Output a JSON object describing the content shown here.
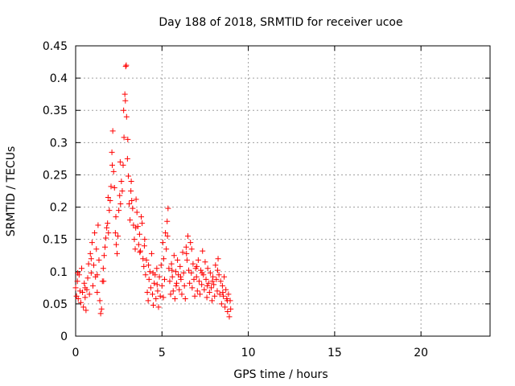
{
  "chart_data": {
    "type": "scatter",
    "title": "Day 188 of 2018, SRMTID for receiver ucoe",
    "xlabel": "GPS time / hours",
    "ylabel": "SRMTID / TECUs",
    "xlim": [
      0,
      24
    ],
    "ylim": [
      0,
      0.45
    ],
    "grid": true,
    "marker": "+",
    "color": "#ff0000",
    "x_ticks": [
      "0",
      "5",
      "10",
      "15",
      "20"
    ],
    "y_ticks": [
      "0",
      "0.05",
      "0.1",
      "0.15",
      "0.2",
      "0.25",
      "0.3",
      "0.35",
      "0.4",
      "0.45"
    ],
    "series": [
      {
        "name": "SRMTID",
        "points": [
          [
            0.0,
            0.075
          ],
          [
            0.05,
            0.062
          ],
          [
            0.1,
            0.085
          ],
          [
            0.15,
            0.058
          ],
          [
            0.2,
            0.095
          ],
          [
            0.25,
            0.07
          ],
          [
            0.3,
            0.052
          ],
          [
            0.35,
            0.105
          ],
          [
            0.4,
            0.068
          ],
          [
            0.45,
            0.045
          ],
          [
            0.5,
            0.082
          ],
          [
            0.55,
            0.06
          ],
          [
            0.6,
            0.04
          ],
          [
            0.65,
            0.072
          ],
          [
            0.7,
            0.09
          ],
          [
            0.75,
            0.112
          ],
          [
            0.8,
            0.065
          ],
          [
            0.85,
            0.128
          ],
          [
            0.9,
            0.098
          ],
          [
            0.95,
            0.145
          ],
          [
            1.0,
            0.078
          ],
          [
            1.05,
            0.11
          ],
          [
            1.1,
            0.16
          ],
          [
            1.15,
            0.092
          ],
          [
            1.2,
            0.135
          ],
          [
            1.25,
            0.068
          ],
          [
            1.3,
            0.172
          ],
          [
            1.35,
            0.118
          ],
          [
            1.4,
            0.055
          ],
          [
            1.45,
            0.035
          ],
          [
            1.5,
            0.042
          ],
          [
            1.55,
            0.085
          ],
          [
            1.6,
            0.105
          ],
          [
            1.65,
            0.125
          ],
          [
            1.7,
            0.138
          ],
          [
            1.75,
            0.152
          ],
          [
            1.8,
            0.168
          ],
          [
            1.85,
            0.175
          ],
          [
            1.9,
            0.16
          ],
          [
            1.95,
            0.195
          ],
          [
            2.0,
            0.21
          ],
          [
            2.05,
            0.232
          ],
          [
            2.1,
            0.285
          ],
          [
            2.15,
            0.318
          ],
          [
            2.2,
            0.255
          ],
          [
            2.25,
            0.23
          ],
          [
            2.3,
            0.16
          ],
          [
            2.35,
            0.142
          ],
          [
            2.4,
            0.128
          ],
          [
            2.45,
            0.155
          ],
          [
            2.5,
            0.195
          ],
          [
            2.55,
            0.218
          ],
          [
            2.6,
            0.205
          ],
          [
            2.65,
            0.24
          ],
          [
            2.7,
            0.225
          ],
          [
            2.75,
            0.265
          ],
          [
            2.8,
            0.308
          ],
          [
            2.85,
            0.375
          ],
          [
            2.9,
            0.418
          ],
          [
            2.95,
            0.34
          ],
          [
            3.0,
            0.275
          ],
          [
            3.05,
            0.248
          ],
          [
            3.1,
            0.205
          ],
          [
            3.15,
            0.18
          ],
          [
            3.2,
            0.225
          ],
          [
            3.25,
            0.21
          ],
          [
            3.3,
            0.198
          ],
          [
            3.35,
            0.172
          ],
          [
            3.4,
            0.15
          ],
          [
            3.45,
            0.135
          ],
          [
            3.5,
            0.212
          ],
          [
            3.55,
            0.192
          ],
          [
            3.6,
            0.17
          ],
          [
            3.65,
            0.142
          ],
          [
            3.7,
            0.158
          ],
          [
            3.75,
            0.132
          ],
          [
            3.8,
            0.185
          ],
          [
            3.85,
            0.175
          ],
          [
            3.9,
            0.12
          ],
          [
            3.95,
            0.108
          ],
          [
            4.0,
            0.15
          ],
          [
            4.05,
            0.095
          ],
          [
            4.1,
            0.118
          ],
          [
            4.15,
            0.068
          ],
          [
            4.2,
            0.055
          ],
          [
            4.25,
            0.088
          ],
          [
            4.3,
            0.1
          ],
          [
            4.35,
            0.075
          ],
          [
            4.4,
            0.128
          ],
          [
            4.45,
            0.065
          ],
          [
            4.5,
            0.048
          ],
          [
            4.55,
            0.082
          ],
          [
            4.6,
            0.095
          ],
          [
            4.65,
            0.058
          ],
          [
            4.7,
            0.105
          ],
          [
            4.75,
            0.07
          ],
          [
            4.8,
            0.045
          ],
          [
            4.85,
            0.092
          ],
          [
            4.9,
            0.062
          ],
          [
            4.95,
            0.11
          ],
          [
            5.0,
            0.078
          ],
          [
            5.05,
            0.145
          ],
          [
            5.1,
            0.12
          ],
          [
            5.15,
            0.088
          ],
          [
            5.2,
            0.16
          ],
          [
            5.25,
            0.135
          ],
          [
            5.3,
            0.178
          ],
          [
            5.35,
            0.198
          ],
          [
            5.4,
            0.105
          ],
          [
            5.45,
            0.085
          ],
          [
            5.5,
            0.065
          ],
          [
            5.55,
            0.112
          ],
          [
            5.6,
            0.092
          ],
          [
            5.65,
            0.07
          ],
          [
            5.7,
            0.125
          ],
          [
            5.75,
            0.058
          ],
          [
            5.8,
            0.1
          ],
          [
            5.85,
            0.082
          ],
          [
            5.9,
            0.118
          ],
          [
            5.95,
            0.095
          ],
          [
            6.0,
            0.072
          ],
          [
            6.05,
            0.108
          ],
          [
            6.1,
            0.088
          ],
          [
            6.15,
            0.065
          ],
          [
            6.2,
            0.13
          ],
          [
            6.25,
            0.098
          ],
          [
            6.3,
            0.078
          ],
          [
            6.35,
            0.058
          ],
          [
            6.4,
            0.138
          ],
          [
            6.45,
            0.118
          ],
          [
            6.5,
            0.155
          ],
          [
            6.55,
            0.102
          ],
          [
            6.6,
            0.082
          ],
          [
            6.65,
            0.145
          ],
          [
            6.7,
            0.098
          ],
          [
            6.75,
            0.075
          ],
          [
            6.8,
            0.112
          ],
          [
            6.85,
            0.088
          ],
          [
            6.9,
            0.062
          ],
          [
            6.95,
            0.105
          ],
          [
            7.0,
            0.092
          ],
          [
            7.05,
            0.07
          ],
          [
            7.1,
            0.118
          ],
          [
            7.15,
            0.085
          ],
          [
            7.2,
            0.065
          ],
          [
            7.25,
            0.102
          ],
          [
            7.3,
            0.08
          ],
          [
            7.35,
            0.132
          ],
          [
            7.4,
            0.095
          ],
          [
            7.45,
            0.072
          ],
          [
            7.5,
            0.115
          ],
          [
            7.55,
            0.088
          ],
          [
            7.6,
            0.06
          ],
          [
            7.65,
            0.105
          ],
          [
            7.7,
            0.082
          ],
          [
            7.75,
            0.068
          ],
          [
            7.8,
            0.098
          ],
          [
            7.85,
            0.075
          ],
          [
            7.9,
            0.055
          ],
          [
            7.95,
            0.092
          ],
          [
            8.0,
            0.08
          ],
          [
            8.05,
            0.062
          ],
          [
            8.1,
            0.11
          ],
          [
            8.15,
            0.088
          ],
          [
            8.2,
            0.07
          ],
          [
            8.25,
            0.12
          ],
          [
            8.3,
            0.095
          ],
          [
            8.35,
            0.065
          ],
          [
            8.4,
            0.085
          ],
          [
            8.45,
            0.05
          ],
          [
            8.5,
            0.078
          ],
          [
            8.55,
            0.062
          ],
          [
            8.6,
            0.092
          ],
          [
            8.65,
            0.045
          ],
          [
            8.7,
            0.072
          ],
          [
            8.75,
            0.058
          ],
          [
            8.8,
            0.038
          ],
          [
            8.85,
            0.065
          ],
          [
            8.9,
            0.03
          ],
          [
            8.95,
            0.055
          ],
          [
            0.12,
            0.098
          ],
          [
            0.55,
            0.075
          ],
          [
            0.9,
            0.12
          ],
          [
            1.25,
            0.095
          ],
          [
            1.62,
            0.085
          ],
          [
            1.88,
            0.215
          ],
          [
            2.12,
            0.265
          ],
          [
            2.33,
            0.185
          ],
          [
            2.58,
            0.27
          ],
          [
            2.78,
            0.35
          ],
          [
            2.88,
            0.365
          ],
          [
            2.93,
            0.42
          ],
          [
            3.02,
            0.305
          ],
          [
            3.22,
            0.24
          ],
          [
            3.48,
            0.168
          ],
          [
            3.72,
            0.13
          ],
          [
            3.98,
            0.14
          ],
          [
            4.22,
            0.11
          ],
          [
            4.48,
            0.098
          ],
          [
            4.72,
            0.08
          ],
          [
            5.08,
            0.06
          ],
          [
            5.32,
            0.155
          ],
          [
            5.58,
            0.102
          ],
          [
            5.82,
            0.078
          ],
          [
            6.08,
            0.092
          ],
          [
            6.42,
            0.128
          ],
          [
            6.72,
            0.135
          ],
          [
            7.02,
            0.108
          ],
          [
            7.32,
            0.098
          ],
          [
            7.62,
            0.078
          ],
          [
            7.92,
            0.085
          ],
          [
            8.22,
            0.102
          ],
          [
            8.52,
            0.068
          ],
          [
            8.78,
            0.055
          ],
          [
            8.98,
            0.042
          ]
        ]
      }
    ]
  }
}
